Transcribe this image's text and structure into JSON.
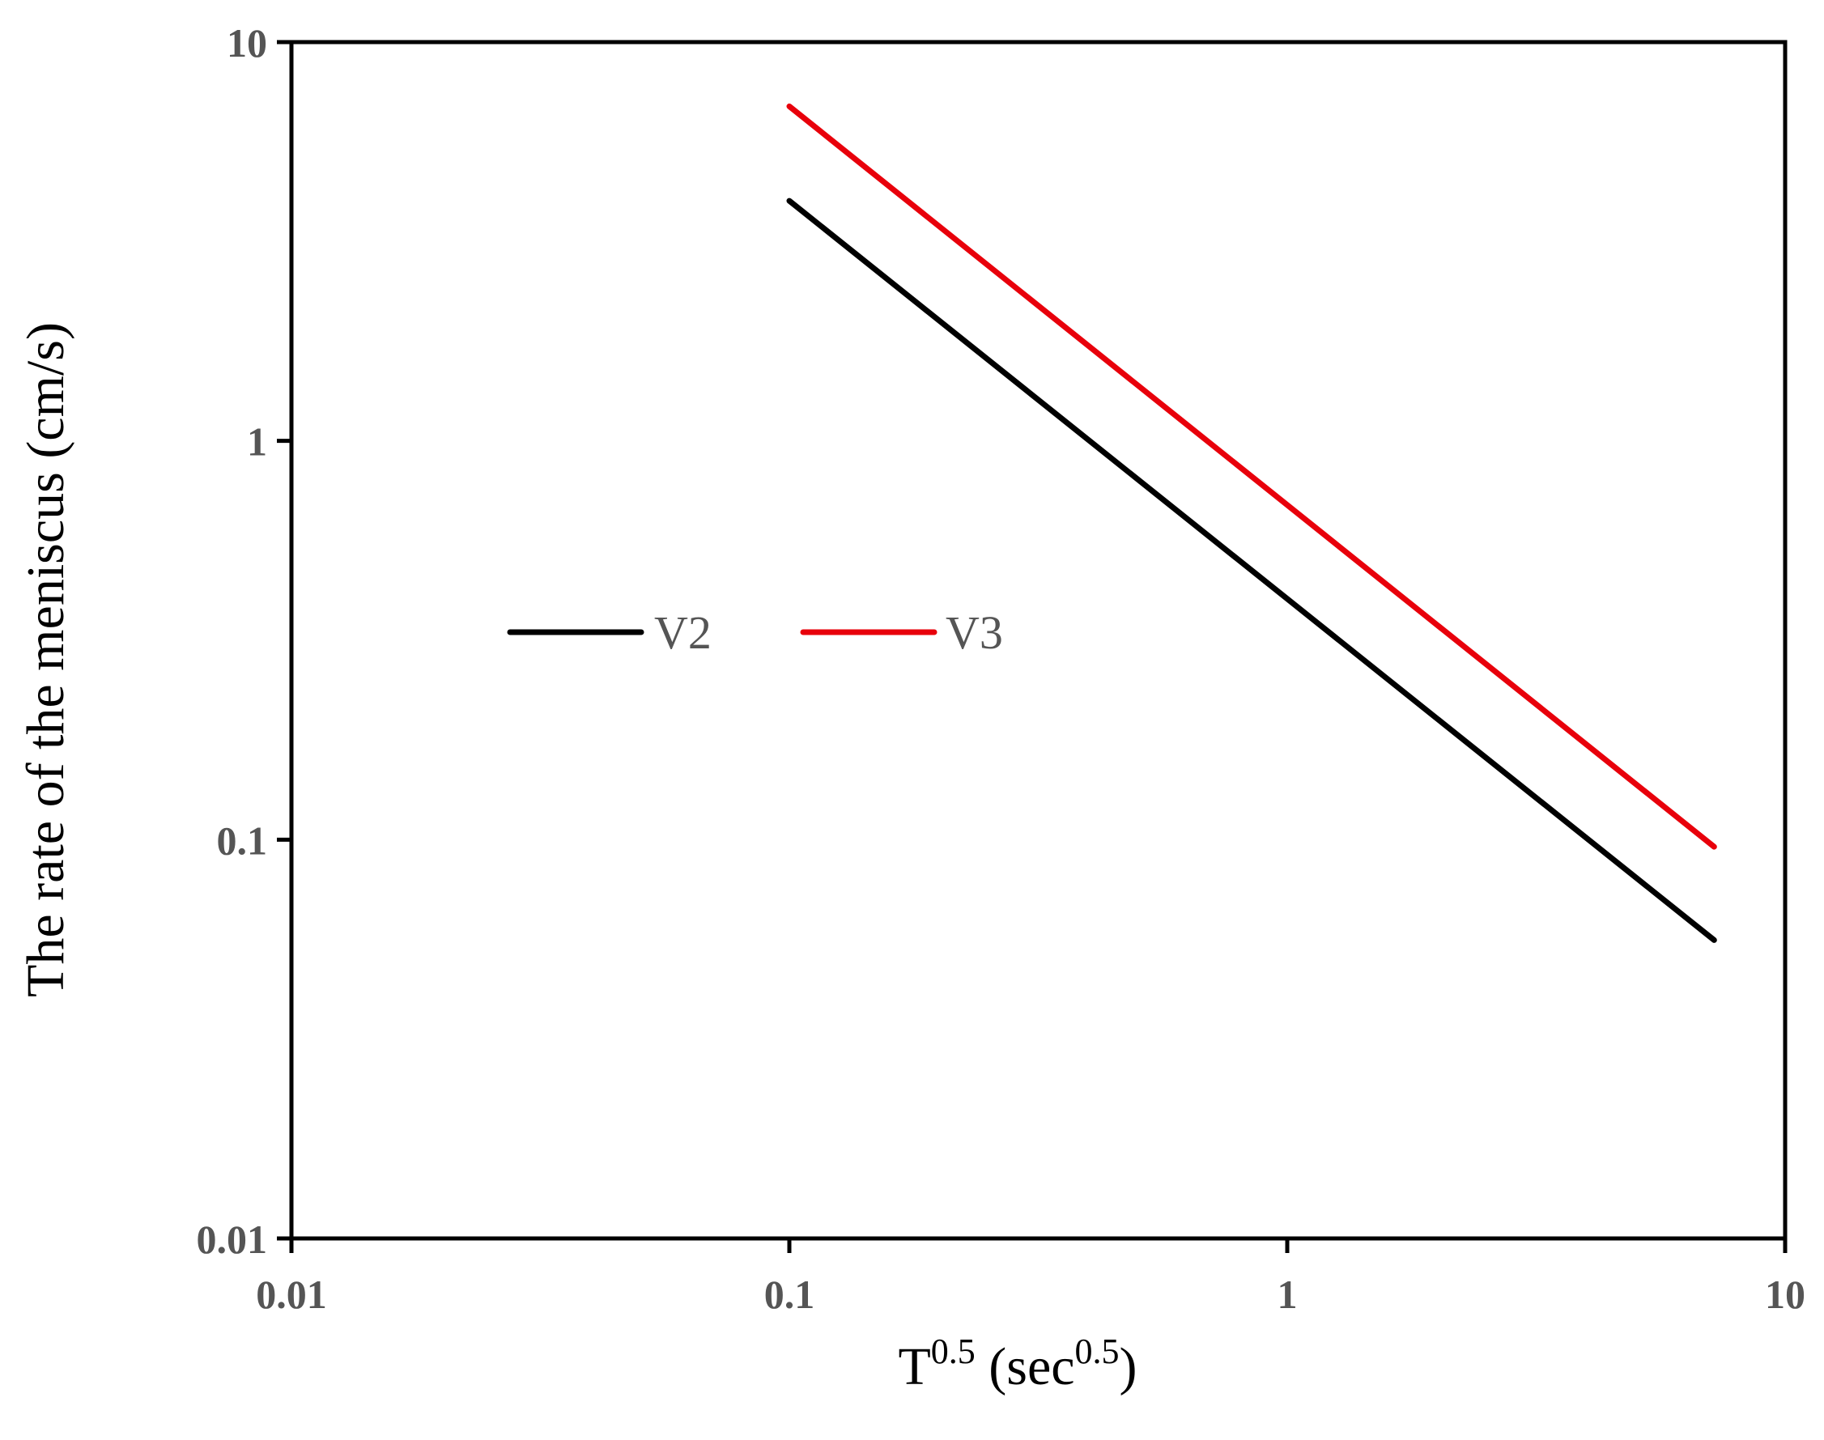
{
  "chart_data": {
    "type": "line",
    "title": "",
    "xlabel": {
      "base": "T",
      "sup": "0.5",
      "unit_open": " (sec",
      "unit_sup": "0.5",
      "unit_close": ")"
    },
    "ylabel": "The rate of the meniscus (cm/s)",
    "xscale": "log",
    "yscale": "log",
    "xlim": [
      0.01,
      10
    ],
    "ylim": [
      0.01,
      10
    ],
    "xticks": [
      {
        "value": 0.01,
        "label": "0.01"
      },
      {
        "value": 0.1,
        "label": "0.1"
      },
      {
        "value": 1,
        "label": "1"
      },
      {
        "value": 10,
        "label": "10"
      }
    ],
    "yticks": [
      {
        "value": 0.01,
        "label": "0.01"
      },
      {
        "value": 0.1,
        "label": "0.1"
      },
      {
        "value": 1,
        "label": "1"
      },
      {
        "value": 10,
        "label": "10"
      }
    ],
    "grid": false,
    "legend_position": "center-left",
    "series": [
      {
        "name": "V2",
        "color": "#000000",
        "x": [
          0.1,
          7.2
        ],
        "y": [
          4.0,
          0.056
        ]
      },
      {
        "name": "V3",
        "color": "#e8000b",
        "x": [
          0.1,
          7.2
        ],
        "y": [
          6.9,
          0.096
        ]
      }
    ]
  }
}
